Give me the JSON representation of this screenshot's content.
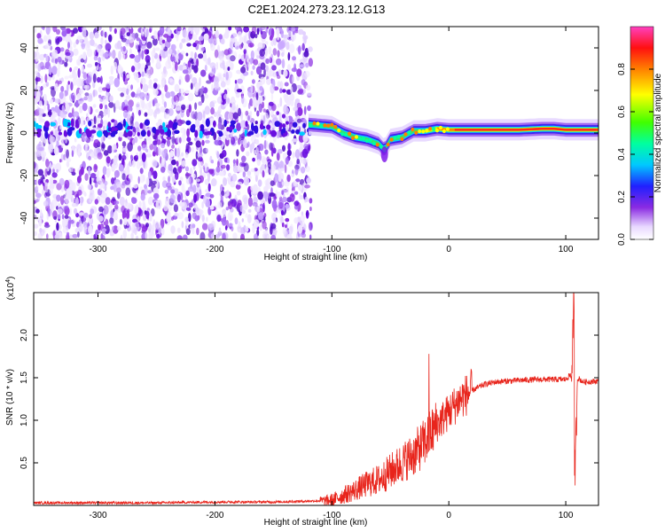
{
  "title": "C2E1.2024.273.23.12.G13",
  "colors": {
    "snr_line": "#e8241b",
    "signal_purple": "#7b10e8",
    "axis": "#000000"
  },
  "chart_data": [
    {
      "type": "heatmap",
      "xlabel": "Height of straight line (km)",
      "ylabel": "Frequency (Hz)",
      "xlim": [
        -355,
        128
      ],
      "ylim": [
        -50,
        50
      ],
      "xticks": [
        -300,
        -200,
        -100,
        0,
        100
      ],
      "xtick_labels": [
        "-300",
        "-200",
        "-100",
        "0",
        "100"
      ],
      "yticks": [
        -40,
        -20,
        0,
        20,
        40
      ],
      "ytick_labels": [
        "-40",
        "-20",
        "0",
        "20",
        "40"
      ],
      "noise_region_x": [
        -355,
        -118
      ],
      "colorbar": {
        "label": "Normalized spectral amplitude",
        "range": [
          0,
          1
        ],
        "ticks": [
          0.0,
          0.2,
          0.4,
          0.6,
          0.8
        ],
        "tick_labels": [
          "0.0",
          "0.2",
          "0.4",
          "0.6",
          "0.8"
        ]
      },
      "ridge": {
        "x": [
          -120,
          -110,
          -100,
          -90,
          -80,
          -70,
          -60,
          -55,
          -50,
          -40,
          -30,
          -20,
          -10,
          0,
          20,
          40,
          60,
          80,
          90,
          100,
          110,
          128
        ],
        "y": [
          4,
          3.5,
          3,
          0,
          -2,
          -3,
          -5,
          -8,
          -3,
          -2,
          1,
          1,
          2,
          1.5,
          1.5,
          1.5,
          1.5,
          2,
          2,
          1.5,
          1.5,
          1.5
        ]
      }
    },
    {
      "type": "line",
      "xlabel": "Height of straight line (km)",
      "ylabel": "SNR (10 * v/v)",
      "y_multiplier_label": "(x10",
      "y_multiplier_exp": "4",
      "y_multiplier_close": ")",
      "xlim": [
        -355,
        128
      ],
      "ylim": [
        0,
        2.5
      ],
      "xticks": [
        -300,
        -200,
        -100,
        0,
        100
      ],
      "xtick_labels": [
        "-300",
        "-200",
        "-100",
        "0",
        "100"
      ],
      "yticks": [
        0.5,
        1.0,
        1.5,
        2.0
      ],
      "ytick_labels": [
        "0.5",
        "1.0",
        "1.5",
        "2.0"
      ],
      "series": [
        {
          "x": [
            -355,
            -300,
            -250,
            -200,
            -150,
            -120,
            -100,
            -90,
            -80,
            -70,
            -60,
            -50,
            -40,
            -30,
            -20,
            -15,
            -10,
            0,
            10,
            20,
            30,
            40,
            60,
            80,
            100,
            105,
            107,
            108,
            110,
            115,
            128
          ],
          "y": [
            0.03,
            0.03,
            0.03,
            0.04,
            0.04,
            0.05,
            0.06,
            0.12,
            0.18,
            0.25,
            0.3,
            0.4,
            0.5,
            0.6,
            0.75,
            0.85,
            0.95,
            1.1,
            1.25,
            1.35,
            1.42,
            1.45,
            1.47,
            1.48,
            1.48,
            1.55,
            2.45,
            0.35,
            1.5,
            1.45,
            1.46
          ]
        }
      ],
      "peaks": [
        {
          "x": -17,
          "y": 1.78
        },
        {
          "x": 107,
          "y": 2.45
        },
        {
          "x": 107.5,
          "y": 0.35
        }
      ]
    }
  ]
}
